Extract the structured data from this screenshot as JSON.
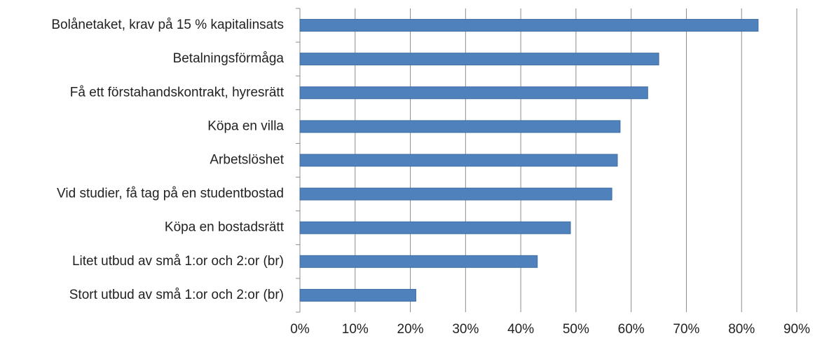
{
  "chart_data": {
    "type": "hbar",
    "categories": [
      "Bolånetaket, krav på 15 % kapitalinsats",
      "Betalningsförmåga",
      "Få ett förstahandskontrakt, hyresrätt",
      "Köpa en villa",
      "Arbetslöshet",
      "Vid studier, få tag på en studentbostad",
      "Köpa en bostadsrätt",
      "Litet utbud av små 1:or och 2:or (br)",
      "Stort utbud av små 1:or och 2:or (br)"
    ],
    "values": [
      83,
      65,
      63,
      58,
      57.5,
      56.5,
      49,
      43,
      21
    ],
    "color": "#4f81bd",
    "xlim": [
      0,
      90
    ],
    "xticks": [
      {
        "value": 0,
        "label": "0%"
      },
      {
        "value": 10,
        "label": "10%"
      },
      {
        "value": 20,
        "label": "20%"
      },
      {
        "value": 30,
        "label": "30%"
      },
      {
        "value": 40,
        "label": "40%"
      },
      {
        "value": 50,
        "label": "50%"
      },
      {
        "value": 60,
        "label": "60%"
      },
      {
        "value": 70,
        "label": "70%"
      },
      {
        "value": 80,
        "label": "80%"
      },
      {
        "value": 90,
        "label": "90%"
      }
    ],
    "grid": true
  }
}
